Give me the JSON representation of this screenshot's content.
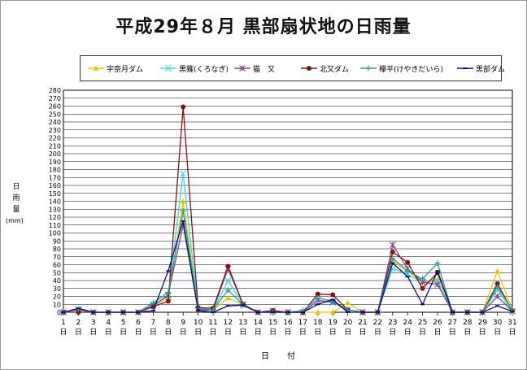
{
  "title": "平成29年８月  黒部扇状地の日雨量",
  "chart_data": {
    "type": "line",
    "title": "平成29年８月  黒部扇状地の日雨量",
    "ylabel": "日雨量",
    "yunit": "(mm)",
    "xlabel": "日　付",
    "ylim": [
      0,
      280
    ],
    "ytick_step": 10,
    "day_suffix": "日",
    "legend_position": "top",
    "grid": true,
    "x": [
      1,
      2,
      3,
      4,
      5,
      6,
      7,
      8,
      9,
      10,
      11,
      12,
      13,
      14,
      15,
      16,
      17,
      18,
      19,
      20,
      21,
      22,
      23,
      24,
      25,
      26,
      27,
      28,
      29,
      30,
      31
    ],
    "series": [
      {
        "name": "宇奈月ダム",
        "color": "#f2c200",
        "marker": "triangle",
        "values": [
          0,
          3,
          0,
          0,
          0,
          0,
          8,
          18,
          140,
          5,
          3,
          18,
          10,
          0,
          0,
          0,
          0,
          0,
          0,
          12,
          0,
          0,
          65,
          52,
          38,
          42,
          0,
          0,
          0,
          52,
          3
        ]
      },
      {
        "name": "黒薙(くろなぎ)",
        "color": "#33dddd",
        "marker": "x",
        "values": [
          0,
          4,
          0,
          0,
          0,
          0,
          10,
          20,
          175,
          3,
          2,
          40,
          9,
          0,
          0,
          0,
          0,
          15,
          12,
          3,
          0,
          0,
          55,
          48,
          38,
          40,
          0,
          0,
          0,
          28,
          1
        ]
      },
      {
        "name": "猫　又",
        "color": "#884499",
        "marker": "star",
        "values": [
          0,
          3,
          0,
          0,
          0,
          0,
          8,
          22,
          110,
          3,
          3,
          55,
          10,
          0,
          2,
          0,
          0,
          15,
          13,
          3,
          0,
          0,
          85,
          55,
          38,
          35,
          0,
          0,
          0,
          20,
          1
        ]
      },
      {
        "name": "北又ダム",
        "color": "#8a1010",
        "marker": "circle",
        "values": [
          0,
          0,
          0,
          0,
          0,
          0,
          7,
          14,
          259,
          6,
          5,
          58,
          10,
          0,
          2,
          0,
          0,
          23,
          22,
          3,
          0,
          0,
          76,
          63,
          30,
          50,
          0,
          0,
          0,
          36,
          2
        ]
      },
      {
        "name": "欅平(けやきだいら)",
        "color": "#2a9e8a",
        "marker": "plus",
        "values": [
          0,
          4,
          0,
          0,
          0,
          0,
          12,
          25,
          128,
          5,
          3,
          28,
          9,
          0,
          0,
          0,
          2,
          18,
          14,
          3,
          0,
          0,
          68,
          52,
          42,
          62,
          0,
          0,
          0,
          32,
          3
        ]
      },
      {
        "name": "黒部ダム",
        "color": "#0a0a8a",
        "marker": "dash",
        "values": [
          0,
          5,
          0,
          0,
          0,
          0,
          2,
          52,
          115,
          2,
          0,
          8,
          9,
          0,
          0,
          0,
          0,
          10,
          16,
          0,
          0,
          0,
          62,
          45,
          10,
          52,
          0,
          0,
          0,
          8,
          1
        ]
      }
    ]
  }
}
